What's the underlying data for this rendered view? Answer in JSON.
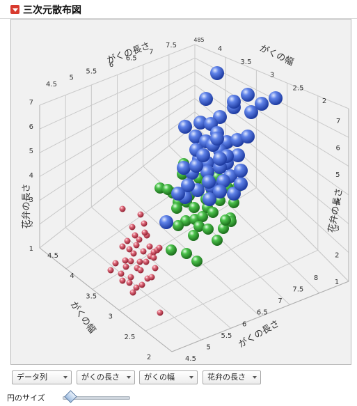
{
  "header": {
    "title": "三次元散布図",
    "disclosure_icon": "red-disclosure-triangle-icon"
  },
  "axes": {
    "sepal_length_label": "がくの長さ",
    "sepal_width_label": "がくの幅",
    "petal_length_label": "花弁の長さ",
    "back_sepal_length_ticks": [
      "4.5",
      "5",
      "5.5",
      "6",
      "6.5",
      "7",
      "7.5"
    ],
    "back_sepal_width_ticks": [
      "4",
      "3.5",
      "3",
      "2.5",
      "2"
    ],
    "left_petal_ticks": [
      "1",
      "2",
      "3",
      "4",
      "5",
      "6",
      "7"
    ],
    "right_petal_ticks": [
      "1",
      "2",
      "3",
      "4",
      "5",
      "6",
      "7"
    ],
    "front_sepal_length_ticks": [
      "4.5",
      "5",
      "5.5",
      "6",
      "6.5",
      "7",
      "7.5",
      "8"
    ],
    "front_sepal_width_ticks": [
      "4.5",
      "4",
      "3.5",
      "3",
      "2.5",
      "2"
    ],
    "top_corner_tick": "485"
  },
  "colors": {
    "setosa": "#d9586a",
    "versicolor": "#3fb33f",
    "virginica": "#4a6fe0"
  },
  "controls": {
    "data_column": "データ列",
    "x_select": "がくの長さ",
    "y_select": "がくの幅",
    "z_select": "花弁の長さ",
    "bubble_size_label": "円のサイズ"
  }
}
